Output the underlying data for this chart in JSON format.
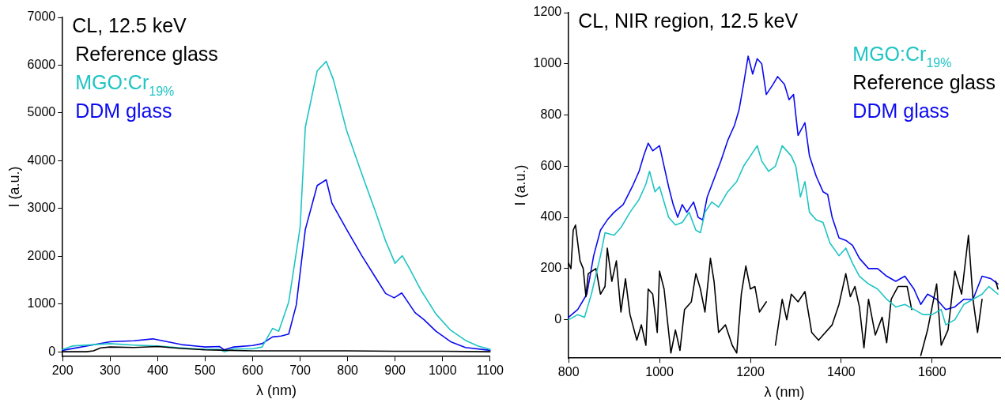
{
  "chart_data": [
    {
      "type": "line",
      "title": "CL, 12.5 keV",
      "xlabel": "λ (nm)",
      "ylabel": "I (a.u.)",
      "xlim": [
        200,
        1100
      ],
      "ylim": [
        -100,
        7000
      ],
      "xticks": [
        200,
        300,
        400,
        500,
        600,
        700,
        800,
        900,
        1000,
        1100
      ],
      "yticks": [
        0,
        1000,
        2000,
        3000,
        4000,
        5000,
        6000,
        7000
      ],
      "grid": false,
      "legend": "top left",
      "marker": "none",
      "line_style": "solid",
      "series": [
        {
          "name": "Reference glass",
          "color": "#000000",
          "x": [
            200,
            250,
            265,
            280,
            300,
            350,
            400,
            450,
            500,
            550,
            600,
            700,
            800,
            900,
            1000,
            1100
          ],
          "values": [
            0,
            0,
            20,
            80,
            100,
            90,
            110,
            70,
            40,
            30,
            20,
            20,
            20,
            10,
            10,
            0
          ]
        },
        {
          "name": "MGO:Cr$_{19%}$",
          "color": "#1fc4c4",
          "x": [
            200,
            220,
            300,
            350,
            400,
            450,
            500,
            530,
            540,
            560,
            600,
            620,
            642,
            655,
            676,
            700,
            711,
            736,
            755,
            770,
            798,
            830,
            861,
            880,
            900,
            915,
            930,
            955,
            986,
            1017,
            1048,
            1075,
            1100
          ],
          "values": [
            50,
            120,
            170,
            140,
            120,
            80,
            50,
            50,
            0,
            60,
            60,
            100,
            490,
            430,
            1040,
            2600,
            4700,
            5880,
            6080,
            5700,
            4630,
            3720,
            2870,
            2320,
            1850,
            2010,
            1750,
            1280,
            790,
            450,
            240,
            120,
            50
          ]
        },
        {
          "name": "DDM glass",
          "color": "#0a0af0",
          "x": [
            200,
            300,
            350,
            390,
            400,
            450,
            500,
            530,
            540,
            560,
            600,
            620,
            642,
            660,
            676,
            692,
            711,
            736,
            755,
            767,
            798,
            830,
            861,
            880,
            898,
            914,
            942,
            961,
            986,
            1017,
            1048,
            1100
          ],
          "values": [
            30,
            210,
            230,
            270,
            250,
            150,
            100,
            110,
            40,
            100,
            130,
            170,
            310,
            330,
            370,
            980,
            2560,
            3480,
            3600,
            3110,
            2560,
            2010,
            1520,
            1220,
            1130,
            1230,
            820,
            670,
            430,
            210,
            90,
            30
          ]
        }
      ]
    },
    {
      "type": "line",
      "title": "CL, NIR region, 12.5 keV",
      "xlabel": "λ (nm)",
      "ylabel": "I (a.u.)",
      "xlim": [
        800,
        1750
      ],
      "ylim": [
        -150,
        1200
      ],
      "xticks": [
        800,
        1000,
        1200,
        1400,
        1600
      ],
      "yticks": [
        0,
        200,
        400,
        600,
        800,
        1000,
        1200
      ],
      "grid": false,
      "legend": "top right",
      "marker": "none",
      "line_style": "solid",
      "series": [
        {
          "name": "MGO:Cr$_{19%}$",
          "color": "#1fc4c4",
          "x": [
            800,
            820,
            835,
            850,
            870,
            880,
            900,
            915,
            935,
            955,
            970,
            978,
            990,
            1000,
            1010,
            1020,
            1035,
            1050,
            1065,
            1080,
            1090,
            1100,
            1115,
            1130,
            1150,
            1170,
            1185,
            1200,
            1215,
            1225,
            1240,
            1255,
            1270,
            1290,
            1300,
            1310,
            1320,
            1330,
            1345,
            1360,
            1375,
            1395,
            1410,
            1425,
            1440,
            1460,
            1480,
            1500,
            1520,
            1540,
            1560,
            1580,
            1600,
            1620,
            1630,
            1650,
            1670,
            1690,
            1710,
            1725,
            1745
          ],
          "values": [
            0,
            20,
            10,
            100,
            250,
            340,
            330,
            360,
            420,
            470,
            530,
            580,
            500,
            520,
            460,
            400,
            370,
            380,
            420,
            350,
            340,
            420,
            460,
            440,
            500,
            540,
            600,
            640,
            680,
            620,
            580,
            600,
            680,
            640,
            600,
            480,
            540,
            420,
            390,
            380,
            300,
            250,
            280,
            220,
            170,
            140,
            120,
            80,
            50,
            60,
            40,
            20,
            20,
            40,
            -20,
            0,
            60,
            80,
            100,
            130,
            100
          ]
        },
        {
          "name": "Reference glass",
          "color": "#000000",
          "x": [
            800,
            805,
            810,
            815,
            825,
            832,
            838,
            843,
            860,
            870,
            880,
            885,
            895,
            905,
            915,
            925,
            935,
            950,
            960,
            970,
            975,
            985,
            995,
            1000,
            1010,
            1025,
            1035,
            1045,
            1055,
            1070,
            1080,
            1090,
            1100,
            1112,
            1120,
            1130,
            1145,
            1160,
            1170,
            1180,
            1190,
            1200,
            1210,
            1220,
            1235,
            1245,
            1255,
            1270,
            1280,
            1290,
            1305,
            1320,
            1335,
            1350,
            1360,
            1380,
            1395,
            1410,
            1420,
            1430,
            1440,
            1450,
            1460,
            1475,
            1490,
            1500,
            1510,
            1525,
            1545,
            1555,
            1560,
            1575,
            1590,
            1610,
            1620,
            1635,
            1650,
            1665,
            1680,
            1690,
            1700,
            1710,
            1730,
            1740,
            1745
          ],
          "values": [
            220,
            200,
            350,
            370,
            230,
            200,
            90,
            180,
            200,
            100,
            130,
            280,
            150,
            230,
            30,
            160,
            20,
            -80,
            -20,
            -100,
            120,
            100,
            -50,
            190,
            120,
            -130,
            -40,
            -120,
            40,
            70,
            180,
            120,
            30,
            240,
            150,
            -50,
            -20,
            -100,
            -130,
            100,
            210,
            120,
            130,
            30,
            70,
            null,
            -100,
            80,
            0,
            100,
            70,
            110,
            -50,
            -80,
            -60,
            -20,
            60,
            180,
            90,
            130,
            50,
            -110,
            80,
            -60,
            10,
            -90,
            80,
            130,
            130,
            40,
            null,
            -140,
            -40,
            140,
            -100,
            -40,
            190,
            100,
            330,
            80,
            -50,
            80,
            null,
            150,
            120
          ]
        },
        {
          "name": "DDM glass",
          "color": "#0a0af0",
          "x": [
            800,
            820,
            840,
            855,
            870,
            885,
            900,
            920,
            940,
            955,
            965,
            975,
            985,
            1000,
            1010,
            1020,
            1030,
            1040,
            1050,
            1060,
            1075,
            1085,
            1095,
            1105,
            1120,
            1135,
            1150,
            1165,
            1175,
            1185,
            1195,
            1205,
            1215,
            1225,
            1235,
            1250,
            1260,
            1275,
            1285,
            1295,
            1305,
            1320,
            1330,
            1345,
            1360,
            1370,
            1380,
            1395,
            1410,
            1425,
            1440,
            1460,
            1480,
            1500,
            1520,
            1540,
            1560,
            1575,
            1590,
            1610,
            1630,
            1650,
            1670,
            1690,
            1710,
            1730,
            1745
          ],
          "values": [
            10,
            40,
            100,
            250,
            350,
            390,
            420,
            450,
            520,
            580,
            640,
            690,
            660,
            680,
            600,
            520,
            450,
            400,
            450,
            420,
            460,
            400,
            390,
            480,
            550,
            620,
            700,
            760,
            820,
            920,
            1030,
            960,
            1020,
            1000,
            880,
            920,
            950,
            920,
            860,
            880,
            720,
            770,
            640,
            560,
            500,
            490,
            400,
            320,
            310,
            290,
            240,
            200,
            200,
            170,
            150,
            170,
            120,
            60,
            100,
            80,
            40,
            50,
            80,
            80,
            170,
            160,
            140
          ]
        }
      ]
    }
  ]
}
